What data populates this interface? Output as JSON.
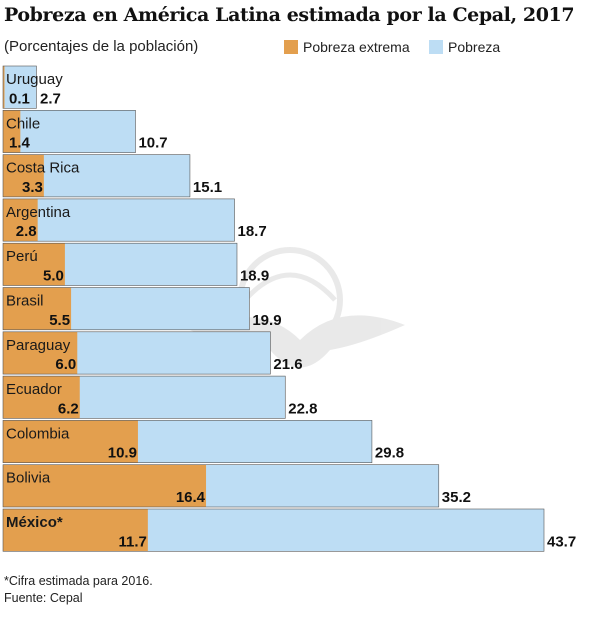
{
  "title": "Pobreza en América Latina estimada por la Cepal, 2017",
  "subtitle": "(Porcentajes de la población)",
  "legend": {
    "extreme_label": "Pobreza extrema",
    "poverty_label": "Pobreza"
  },
  "colors": {
    "extreme": "#E39F4E",
    "poverty": "#BDDDF4",
    "bar_border": "#555555"
  },
  "footnote": "*Cifra estimada para 2016.",
  "source": "Fuente: Cepal",
  "chart_data": {
    "type": "bar",
    "orientation": "horizontal",
    "overlay": true,
    "categories": [
      "Uruguay",
      "Chile",
      "Costa Rica",
      "Argentina",
      "Perú",
      "Brasil",
      "Paraguay",
      "Ecuador",
      "Colombia",
      "Bolivia",
      "México*"
    ],
    "category_labels": [
      "Uruguay",
      "Chile",
      "Costa Rica",
      "Argentina",
      "Perú",
      "Brasil",
      "Paraguay",
      "Ecuador",
      "Colombia",
      "Bolivia",
      "México*"
    ],
    "bold_categories": [
      "México*"
    ],
    "series": [
      {
        "name": "Pobreza extrema",
        "values": [
          0.1,
          1.4,
          3.3,
          2.8,
          5.0,
          5.5,
          6.0,
          6.2,
          10.9,
          16.4,
          11.7
        ]
      },
      {
        "name": "Pobreza",
        "values": [
          2.7,
          10.7,
          15.1,
          18.7,
          18.9,
          19.9,
          21.6,
          22.8,
          29.8,
          35.2,
          43.7
        ]
      }
    ],
    "value_labels": {
      "extreme": [
        "0.1",
        "1.4",
        "3.3",
        "2.8",
        "5.0",
        "5.5",
        "6.0",
        "6.2",
        "10.9",
        "16.4",
        "11.7"
      ],
      "poverty": [
        "2.7",
        "10.7",
        "15.1",
        "18.7",
        "18.9",
        "19.9",
        "21.6",
        "22.8",
        "29.8",
        "35.2",
        "43.7"
      ]
    },
    "xlim": [
      0,
      43.7
    ],
    "grid": false,
    "legend_position": "top-right"
  }
}
